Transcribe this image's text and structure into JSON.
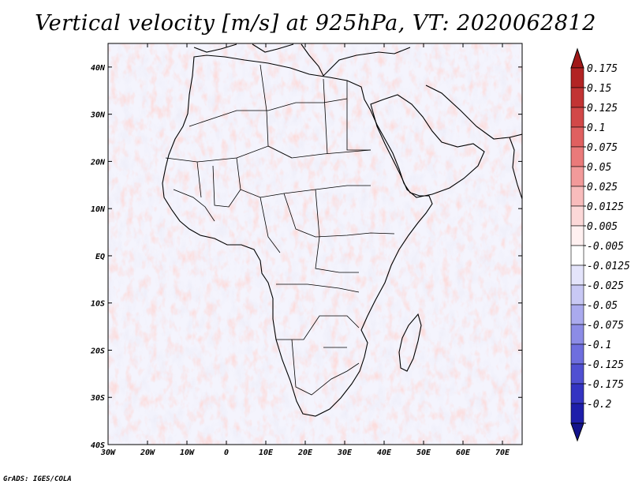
{
  "title": "Vertical velocity [m/s] at 925hPa, VT: 2020062812",
  "credit": "GrADS: IGES/COLA",
  "map": {
    "lon_range": [
      -30,
      75
    ],
    "lat_range": [
      -40,
      45
    ],
    "lat_ticks": [
      {
        "value": 40,
        "label": "40N"
      },
      {
        "value": 30,
        "label": "30N"
      },
      {
        "value": 20,
        "label": "20N"
      },
      {
        "value": 10,
        "label": "10N"
      },
      {
        "value": 0,
        "label": "EQ"
      },
      {
        "value": -10,
        "label": "10S"
      },
      {
        "value": -20,
        "label": "20S"
      },
      {
        "value": -30,
        "label": "30S"
      },
      {
        "value": -40,
        "label": "40S"
      }
    ],
    "lon_ticks": [
      {
        "value": -30,
        "label": "30W"
      },
      {
        "value": -20,
        "label": "20W"
      },
      {
        "value": -10,
        "label": "10W"
      },
      {
        "value": 0,
        "label": "0"
      },
      {
        "value": 10,
        "label": "10E"
      },
      {
        "value": 20,
        "label": "20E"
      },
      {
        "value": 30,
        "label": "30E"
      },
      {
        "value": 40,
        "label": "40E"
      },
      {
        "value": 50,
        "label": "50E"
      },
      {
        "value": 60,
        "label": "60E"
      },
      {
        "value": 70,
        "label": "70E"
      }
    ]
  },
  "colorbar": {
    "levels": [
      {
        "label": "0.175",
        "color": "#b22424"
      },
      {
        "label": "0.15",
        "color": "#c23434"
      },
      {
        "label": "0.125",
        "color": "#d24848"
      },
      {
        "label": "0.1",
        "color": "#e06060"
      },
      {
        "label": "0.075",
        "color": "#ea7a7a"
      },
      {
        "label": "0.05",
        "color": "#f29a9a"
      },
      {
        "label": "0.025",
        "color": "#f8bcbc"
      },
      {
        "label": "0.0125",
        "color": "#fcd8d8"
      },
      {
        "label": "0.005",
        "color": "#fff0f0"
      },
      {
        "label": "-0.005",
        "color": "#ffffff"
      },
      {
        "label": "-0.0125",
        "color": "#e4e4fb"
      },
      {
        "label": "-0.025",
        "color": "#c8c8f4"
      },
      {
        "label": "-0.05",
        "color": "#aaaaee"
      },
      {
        "label": "-0.075",
        "color": "#8c8ce6"
      },
      {
        "label": "-0.1",
        "color": "#6e6ede"
      },
      {
        "label": "-0.125",
        "color": "#5050d2"
      },
      {
        "label": "-0.175",
        "color": "#3434c2"
      },
      {
        "label": "-0.2",
        "color": "#1e1eaa"
      }
    ],
    "top_color": "#a01818",
    "bottom_color": "#14148c"
  },
  "colors": {
    "field_positive": "#e07070",
    "field_negative": "#7070e0",
    "coastline": "#000000"
  }
}
